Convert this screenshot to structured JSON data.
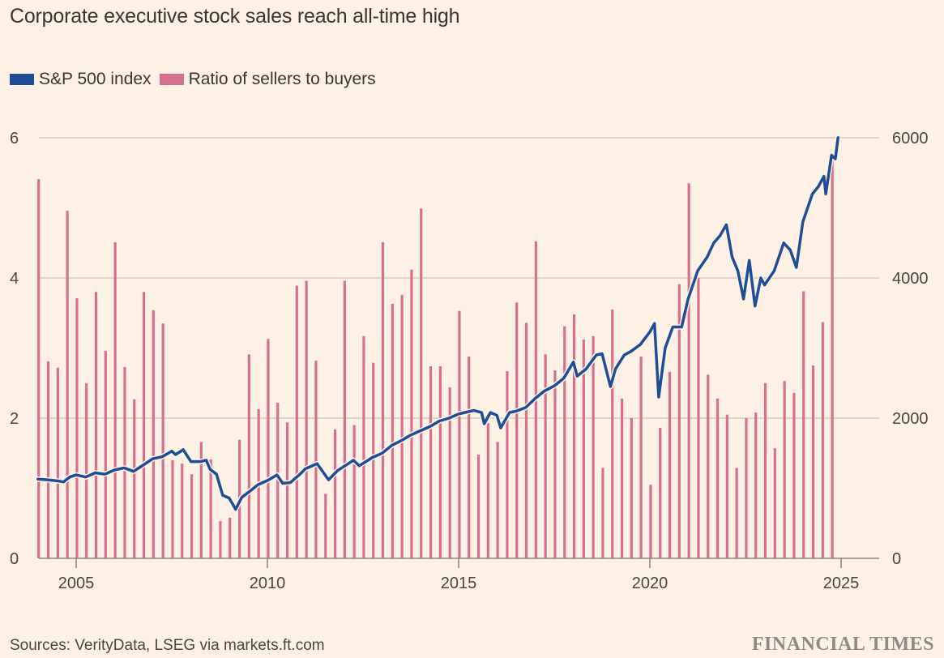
{
  "title": "Corporate executive stock sales reach all-time high",
  "source": "Sources: VerityData, LSEG via markets.ft.com",
  "publisher": "FINANCIAL TIMES",
  "colors": {
    "background": "#fdf1e6",
    "sp500": "#1f4e96",
    "ratio": "#d96f8f",
    "grid": "#d6ccc4",
    "axis": "#8c8580"
  },
  "chart_data": {
    "type": "bar+line",
    "title": "Corporate executive stock sales reach all-time high",
    "legend": [
      {
        "name": "S&P 500 index",
        "color": "#1f4e96",
        "kind": "line",
        "axis": "right"
      },
      {
        "name": "Ratio of sellers to buyers",
        "color": "#d96f8f",
        "kind": "bar",
        "axis": "left"
      }
    ],
    "legend_position": "top-left",
    "grid": true,
    "x_range": [
      2004,
      2025.5
    ],
    "x_ticks": [
      2005,
      2010,
      2015,
      2020,
      2025
    ],
    "x_tick_labels": [
      "2005",
      "2010",
      "2015",
      "2020",
      "2025"
    ],
    "y_left": {
      "range": [
        0,
        6
      ],
      "ticks": [
        0,
        2,
        4,
        6
      ],
      "tick_labels": [
        "0",
        "2",
        "4",
        "6"
      ],
      "label": ""
    },
    "y_right": {
      "range": [
        0,
        6000
      ],
      "ticks": [
        0,
        2000,
        4000,
        6000
      ],
      "tick_labels": [
        "0",
        "2000",
        "4000",
        "6000"
      ],
      "label": ""
    },
    "bars": {
      "name": "Ratio of sellers to buyers",
      "frequency": "quarterly",
      "start": "2004 Q1",
      "values": [
        5.41,
        2.81,
        2.72,
        4.96,
        3.71,
        2.5,
        3.8,
        2.96,
        4.51,
        2.73,
        2.27,
        3.8,
        3.54,
        3.35,
        1.4,
        1.35,
        1.2,
        1.66,
        1.41,
        0.53,
        0.58,
        1.69,
        2.91,
        2.13,
        3.13,
        2.22,
        1.94,
        3.89,
        3.96,
        2.82,
        0.92,
        1.84,
        3.96,
        1.9,
        3.17,
        2.79,
        4.51,
        3.63,
        3.76,
        4.12,
        4.99,
        2.74,
        2.74,
        2.44,
        3.53,
        2.88,
        1.48,
        1.93,
        1.66,
        2.67,
        3.65,
        3.36,
        4.52,
        2.91,
        2.68,
        3.31,
        3.48,
        3.12,
        3.17,
        1.29,
        3.55,
        2.28,
        2.0,
        2.88,
        1.05,
        1.86,
        2.66,
        3.91,
        5.35,
        4.0,
        2.62,
        2.28,
        2.05,
        1.29,
        2.0,
        2.08,
        2.5,
        1.57,
        2.53,
        2.36,
        3.81,
        2.75,
        3.37,
        5.69
      ]
    },
    "line": {
      "name": "S&P 500 index",
      "points": [
        [
          2004.0,
          1130
        ],
        [
          2004.25,
          1120
        ],
        [
          2004.5,
          1105
        ],
        [
          2004.67,
          1090
        ],
        [
          2004.83,
          1160
        ],
        [
          2005.0,
          1190
        ],
        [
          2005.25,
          1160
        ],
        [
          2005.5,
          1220
        ],
        [
          2005.75,
          1200
        ],
        [
          2006.0,
          1260
        ],
        [
          2006.25,
          1290
        ],
        [
          2006.5,
          1240
        ],
        [
          2006.75,
          1330
        ],
        [
          2007.0,
          1420
        ],
        [
          2007.25,
          1450
        ],
        [
          2007.5,
          1530
        ],
        [
          2007.6,
          1480
        ],
        [
          2007.8,
          1550
        ],
        [
          2008.0,
          1380
        ],
        [
          2008.25,
          1380
        ],
        [
          2008.4,
          1400
        ],
        [
          2008.5,
          1270
        ],
        [
          2008.67,
          1200
        ],
        [
          2008.83,
          900
        ],
        [
          2009.0,
          860
        ],
        [
          2009.17,
          700
        ],
        [
          2009.33,
          870
        ],
        [
          2009.5,
          940
        ],
        [
          2009.75,
          1050
        ],
        [
          2010.0,
          1110
        ],
        [
          2010.25,
          1190
        ],
        [
          2010.4,
          1070
        ],
        [
          2010.6,
          1080
        ],
        [
          2010.83,
          1190
        ],
        [
          2011.0,
          1280
        ],
        [
          2011.3,
          1350
        ],
        [
          2011.6,
          1120
        ],
        [
          2011.83,
          1250
        ],
        [
          2012.0,
          1310
        ],
        [
          2012.25,
          1400
        ],
        [
          2012.4,
          1320
        ],
        [
          2012.75,
          1440
        ],
        [
          2013.0,
          1500
        ],
        [
          2013.25,
          1610
        ],
        [
          2013.5,
          1680
        ],
        [
          2013.75,
          1760
        ],
        [
          2014.0,
          1820
        ],
        [
          2014.25,
          1880
        ],
        [
          2014.5,
          1960
        ],
        [
          2014.75,
          2000
        ],
        [
          2015.0,
          2060
        ],
        [
          2015.4,
          2110
        ],
        [
          2015.6,
          2080
        ],
        [
          2015.67,
          1920
        ],
        [
          2015.83,
          2080
        ],
        [
          2016.0,
          2040
        ],
        [
          2016.1,
          1860
        ],
        [
          2016.33,
          2080
        ],
        [
          2016.5,
          2100
        ],
        [
          2016.75,
          2150
        ],
        [
          2017.0,
          2280
        ],
        [
          2017.25,
          2390
        ],
        [
          2017.5,
          2460
        ],
        [
          2017.75,
          2570
        ],
        [
          2018.0,
          2800
        ],
        [
          2018.1,
          2600
        ],
        [
          2018.33,
          2700
        ],
        [
          2018.6,
          2900
        ],
        [
          2018.75,
          2920
        ],
        [
          2018.97,
          2450
        ],
        [
          2019.1,
          2700
        ],
        [
          2019.33,
          2900
        ],
        [
          2019.5,
          2950
        ],
        [
          2019.75,
          3050
        ],
        [
          2020.0,
          3230
        ],
        [
          2020.12,
          3350
        ],
        [
          2020.23,
          2300
        ],
        [
          2020.4,
          3000
        ],
        [
          2020.6,
          3300
        ],
        [
          2020.83,
          3300
        ],
        [
          2021.0,
          3700
        ],
        [
          2021.25,
          4100
        ],
        [
          2021.5,
          4300
        ],
        [
          2021.67,
          4500
        ],
        [
          2021.83,
          4600
        ],
        [
          2022.0,
          4760
        ],
        [
          2022.15,
          4300
        ],
        [
          2022.3,
          4100
        ],
        [
          2022.45,
          3700
        ],
        [
          2022.6,
          4250
        ],
        [
          2022.75,
          3600
        ],
        [
          2022.9,
          4000
        ],
        [
          2023.0,
          3900
        ],
        [
          2023.25,
          4100
        ],
        [
          2023.5,
          4500
        ],
        [
          2023.67,
          4400
        ],
        [
          2023.83,
          4150
        ],
        [
          2024.0,
          4800
        ],
        [
          2024.25,
          5200
        ],
        [
          2024.4,
          5300
        ],
        [
          2024.55,
          5450
        ],
        [
          2024.6,
          5200
        ],
        [
          2024.75,
          5750
        ],
        [
          2024.85,
          5700
        ],
        [
          2024.92,
          6000
        ]
      ]
    }
  }
}
